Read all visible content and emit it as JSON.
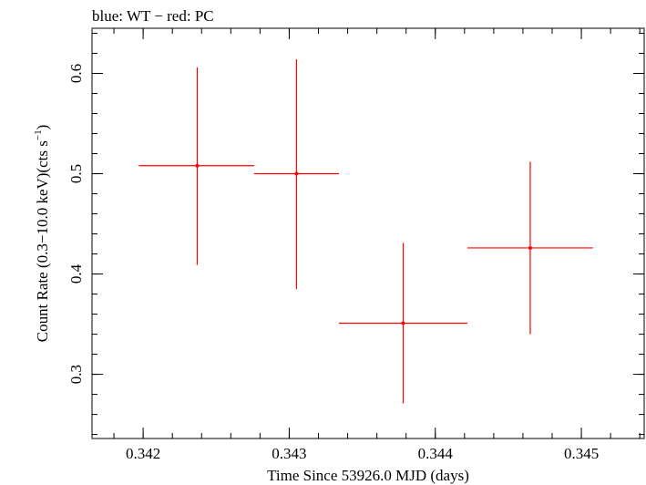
{
  "chart_data": {
    "type": "scatter",
    "title": "blue: WT − red: PC",
    "xlabel": "Time Since 53926.0 MJD (days)",
    "ylabel_parts": {
      "main": "Count Rate (0.3−10.0 keV)(cts s",
      "sup": "−1",
      "close": ")"
    },
    "xlim": [
      0.34165,
      0.34543
    ],
    "ylim": [
      0.236,
      0.645
    ],
    "xticks": [
      {
        "value": 0.342,
        "label": "0.342"
      },
      {
        "value": 0.343,
        "label": "0.343"
      },
      {
        "value": 0.344,
        "label": "0.344"
      },
      {
        "value": 0.345,
        "label": "0.345"
      }
    ],
    "yticks": [
      {
        "value": 0.3,
        "label": "0.3"
      },
      {
        "value": 0.4,
        "label": "0.4"
      },
      {
        "value": 0.5,
        "label": "0.5"
      },
      {
        "value": 0.6,
        "label": "0.6"
      }
    ],
    "x_minor_step": 0.0002,
    "y_minor_step": 0.02,
    "grid": false,
    "series": [
      {
        "color": "#ff0000",
        "points": [
          {
            "x": 0.34237,
            "xerr_lo": 0.34197,
            "xerr_hi": 0.34276,
            "y": 0.508,
            "yerr_lo": 0.409,
            "yerr_hi": 0.606
          },
          {
            "x": 0.34305,
            "xerr_lo": 0.34276,
            "xerr_hi": 0.34334,
            "y": 0.5,
            "yerr_lo": 0.385,
            "yerr_hi": 0.614
          },
          {
            "x": 0.34378,
            "xerr_lo": 0.34334,
            "xerr_hi": 0.34422,
            "y": 0.351,
            "yerr_lo": 0.271,
            "yerr_hi": 0.431
          },
          {
            "x": 0.34465,
            "xerr_lo": 0.34422,
            "xerr_hi": 0.34508,
            "y": 0.426,
            "yerr_lo": 0.34,
            "yerr_hi": 0.512
          }
        ]
      }
    ]
  }
}
